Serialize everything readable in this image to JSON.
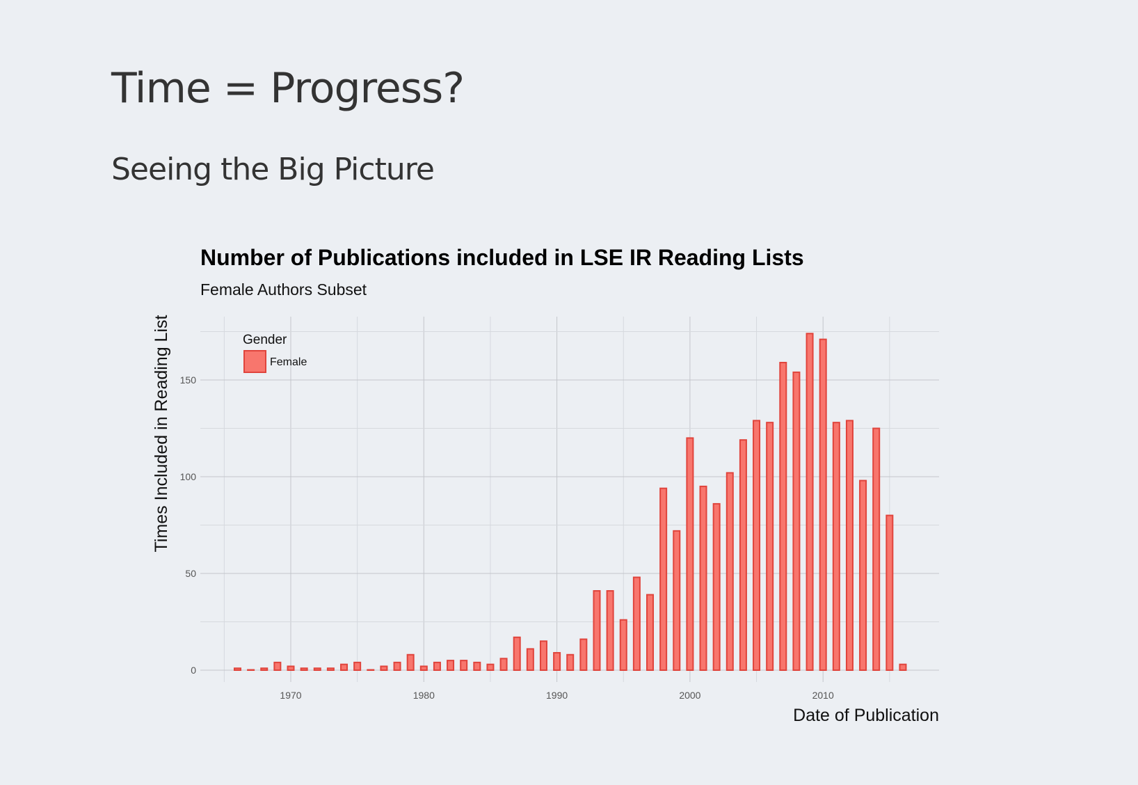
{
  "slide": {
    "title": "Time = Progress?",
    "subtitle": "Seeing the Big Picture"
  },
  "colors": {
    "background": "#eceff3",
    "bar_fill": "#f8766d",
    "bar_outline": "#e0443c"
  },
  "chart_data": {
    "type": "bar",
    "title": "Number of Publications included in LSE IR Reading Lists",
    "subtitle": "Female Authors Subset",
    "xlabel": "Date of Publication",
    "ylabel": "Times Included in Reading List",
    "xlim": [
      1964,
      2017
    ],
    "ylim": [
      0,
      178
    ],
    "x_ticks": [
      1970,
      1980,
      1990,
      2000,
      2010
    ],
    "y_ticks": [
      0,
      50,
      100,
      150
    ],
    "grid": true,
    "legend": {
      "title": "Gender",
      "placement": "top-left",
      "entries": [
        "Female"
      ]
    },
    "series": [
      {
        "name": "Female",
        "x": [
          1966,
          1967,
          1968,
          1969,
          1970,
          1971,
          1972,
          1973,
          1974,
          1975,
          1976,
          1977,
          1978,
          1979,
          1980,
          1981,
          1982,
          1983,
          1984,
          1985,
          1986,
          1987,
          1988,
          1989,
          1990,
          1991,
          1992,
          1993,
          1994,
          1995,
          1996,
          1997,
          1998,
          1999,
          2000,
          2001,
          2002,
          2003,
          2004,
          2005,
          2006,
          2007,
          2008,
          2009,
          2010,
          2011,
          2012,
          2013,
          2014,
          2015,
          2016
        ],
        "values": [
          1,
          0,
          1,
          4,
          2,
          1,
          1,
          1,
          3,
          4,
          0,
          2,
          4,
          8,
          2,
          4,
          5,
          5,
          4,
          3,
          6,
          17,
          11,
          15,
          9,
          8,
          16,
          41,
          41,
          26,
          48,
          39,
          94,
          72,
          120,
          95,
          86,
          102,
          119,
          129,
          128,
          159,
          154,
          174,
          171,
          128,
          129,
          98,
          125,
          80,
          3
        ]
      }
    ]
  }
}
